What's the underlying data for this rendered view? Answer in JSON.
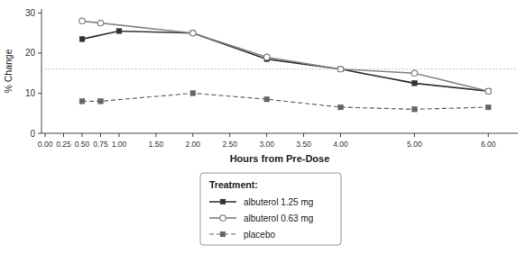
{
  "chart_data": {
    "type": "line",
    "xlabel": "Hours from Pre-Dose",
    "ylabel": "% Change",
    "legend_title": "Treatment:",
    "legend": "bottom",
    "grid": false,
    "xlim": [
      -0.05,
      6.4
    ],
    "ylim": [
      0,
      31
    ],
    "xticks": [
      {
        "value": 0.0,
        "label": "0.00"
      },
      {
        "value": 0.25,
        "label": "0.25"
      },
      {
        "value": 0.5,
        "label": "0.50"
      },
      {
        "value": 0.75,
        "label": "0.75"
      },
      {
        "value": 1.0,
        "label": "1.00"
      },
      {
        "value": 1.5,
        "label": "1.50"
      },
      {
        "value": 2.0,
        "label": "2.00"
      },
      {
        "value": 2.5,
        "label": "2.50"
      },
      {
        "value": 3.0,
        "label": "3.00"
      },
      {
        "value": 3.5,
        "label": "3.50"
      },
      {
        "value": 4.0,
        "label": "4.00"
      },
      {
        "value": 5.0,
        "label": "5.00"
      },
      {
        "value": 6.0,
        "label": "6.00"
      }
    ],
    "yticks": [
      0,
      10,
      20,
      30
    ],
    "reference_line": 16.0,
    "series": [
      {
        "name": "albuterol 1.25 mg",
        "color": "#333333",
        "marker": "square",
        "line_style": "solid",
        "x": [
          0.5,
          1.0,
          2.0,
          3.0,
          4.0,
          5.0,
          6.0
        ],
        "values": [
          23.5,
          25.5,
          25.0,
          18.5,
          16.0,
          12.5,
          10.5
        ]
      },
      {
        "name": "albuterol 0.63 mg",
        "color": "#888888",
        "marker": "circle",
        "line_style": "solid",
        "x": [
          0.5,
          0.75,
          2.0,
          3.0,
          4.0,
          5.0,
          6.0
        ],
        "values": [
          28.0,
          27.5,
          25.0,
          19.0,
          16.0,
          15.0,
          10.5
        ]
      },
      {
        "name": "placebo",
        "color": "#666666",
        "marker": "square",
        "line_style": "dashed",
        "x": [
          0.5,
          0.75,
          2.0,
          3.0,
          4.0,
          5.0,
          6.0
        ],
        "values": [
          8.0,
          8.0,
          10.0,
          8.5,
          6.5,
          6.0,
          6.5
        ]
      }
    ]
  }
}
